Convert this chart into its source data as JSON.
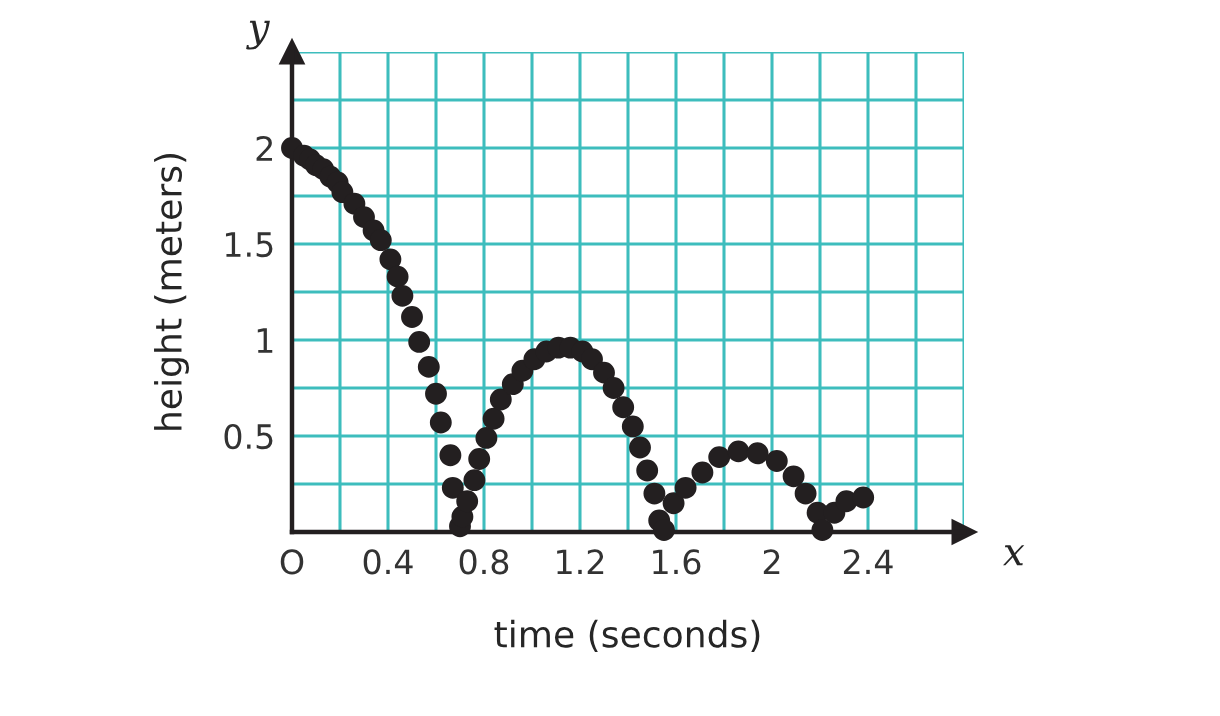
{
  "chart_data": {
    "type": "scatter",
    "xlabel": "time (seconds)",
    "ylabel": "height (meters)",
    "x": [
      0.0,
      0.05,
      0.075,
      0.1,
      0.13,
      0.16,
      0.19,
      0.21,
      0.26,
      0.3,
      0.34,
      0.37,
      0.41,
      0.44,
      0.46,
      0.5,
      0.53,
      0.57,
      0.6,
      0.62,
      0.66,
      0.67,
      0.7,
      0.71,
      0.73,
      0.76,
      0.78,
      0.81,
      0.84,
      0.87,
      0.92,
      0.96,
      1.01,
      1.06,
      1.11,
      1.16,
      1.21,
      1.25,
      1.3,
      1.34,
      1.38,
      1.42,
      1.45,
      1.48,
      1.51,
      1.53,
      1.55,
      1.59,
      1.64,
      1.71,
      1.78,
      1.86,
      1.94,
      2.02,
      2.09,
      2.14,
      2.19,
      2.21,
      2.26,
      2.31,
      2.38
    ],
    "series": [
      {
        "color": "#231f20",
        "values": [
          2.0,
          1.96,
          1.94,
          1.91,
          1.89,
          1.85,
          1.82,
          1.77,
          1.71,
          1.64,
          1.57,
          1.52,
          1.42,
          1.33,
          1.23,
          1.12,
          0.99,
          0.86,
          0.72,
          0.57,
          0.4,
          0.23,
          0.03,
          0.08,
          0.16,
          0.27,
          0.38,
          0.49,
          0.59,
          0.69,
          0.77,
          0.84,
          0.9,
          0.94,
          0.96,
          0.96,
          0.94,
          0.9,
          0.83,
          0.75,
          0.65,
          0.55,
          0.44,
          0.32,
          0.2,
          0.06,
          0.01,
          0.15,
          0.23,
          0.31,
          0.39,
          0.42,
          0.41,
          0.37,
          0.29,
          0.2,
          0.1,
          0.01,
          0.1,
          0.16,
          0.18
        ]
      }
    ],
    "xlim": [
      0,
      2.8
    ],
    "ylim": [
      0,
      2.5
    ],
    "xticks": [
      {
        "value": 0,
        "label": "O"
      },
      {
        "value": 0.2,
        "label": null
      },
      0.4,
      {
        "value": 0.6,
        "label": null
      },
      0.8,
      {
        "value": 1.0,
        "label": null
      },
      1.2,
      {
        "value": 1.4,
        "label": null
      },
      1.6,
      {
        "value": 1.8,
        "label": null
      },
      2,
      {
        "value": 2.2,
        "label": null
      },
      2.4,
      {
        "value": 2.6,
        "label": null
      },
      {
        "value": 2.8,
        "label": null
      }
    ],
    "yticks": [
      {
        "value": 0,
        "label": null
      },
      {
        "value": 0.25,
        "label": null
      },
      0.5,
      {
        "value": 0.75,
        "label": null
      },
      1,
      {
        "value": 1.25,
        "label": null
      },
      1.5,
      {
        "value": 1.75,
        "label": null
      },
      2,
      {
        "value": 2.25,
        "label": null
      },
      {
        "value": 2.5,
        "label": null
      }
    ],
    "grid": true,
    "marker": "circle",
    "annotations": [
      {
        "text": "x",
        "x": 2.8,
        "y": 0
      },
      {
        "text": "y",
        "x": 0,
        "y": 2.5
      }
    ]
  }
}
